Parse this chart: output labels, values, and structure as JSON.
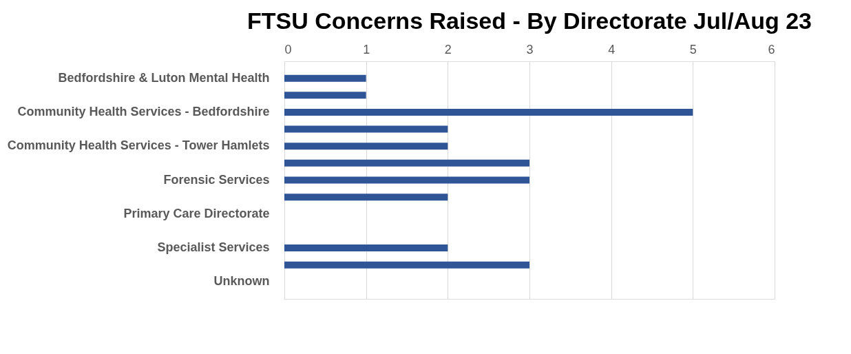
{
  "chart_data": {
    "type": "bar",
    "orientation": "horizontal",
    "title": "FTSU Concerns Raised - By Directorate Jul/Aug 23",
    "categories": [
      "Bedfordshire & Luton Mental Health",
      null,
      "Community Health Services - Bedfordshire",
      null,
      "Community Health Services - Tower Hamlets",
      null,
      "Forensic Services",
      null,
      "Primary Care Directorate",
      null,
      "Specialist Services ",
      null,
      "Unknown"
    ],
    "values": [
      1,
      1,
      5,
      2,
      2,
      3,
      3,
      2,
      0,
      0,
      2,
      3,
      0
    ],
    "color": "#2f5597",
    "xlim": [
      0,
      6
    ],
    "xticks": [
      0,
      1,
      2,
      3,
      4,
      5,
      6
    ],
    "grid": "x"
  }
}
